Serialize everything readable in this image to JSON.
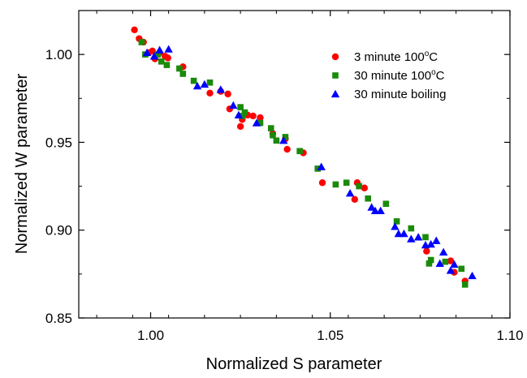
{
  "chart_data": {
    "type": "scatter",
    "xlabel": "Normalized S parameter",
    "ylabel": "Normalized W parameter",
    "xlim": [
      0.98,
      1.1
    ],
    "ylim": [
      0.85,
      1.025
    ],
    "x_ticks": [
      1.0,
      1.05,
      1.1
    ],
    "y_ticks": [
      0.85,
      0.9,
      0.95,
      1.0
    ],
    "x_tick_labels": [
      "1.00",
      "1.05",
      "1.10"
    ],
    "y_tick_labels": [
      "0.85",
      "0.90",
      "0.95",
      "1.00"
    ],
    "grid": false,
    "legend_position": "top-right",
    "series": [
      {
        "name_parts": [
          "3 minute 100",
          "o",
          "C"
        ],
        "marker": "circle",
        "color": "#ff0000",
        "points": [
          [
            0.9955,
            1.014
          ],
          [
            0.9968,
            1.009
          ],
          [
            0.998,
            1.007
          ],
          [
            0.9995,
            1.001
          ],
          [
            1.0005,
            1.002
          ],
          [
            1.0012,
            0.9975
          ],
          [
            1.0025,
            1.001
          ],
          [
            1.004,
            0.999
          ],
          [
            1.0048,
            0.998
          ],
          [
            1.009,
            0.993
          ],
          [
            1.0165,
            0.978
          ],
          [
            1.0195,
            0.979
          ],
          [
            1.0215,
            0.9775
          ],
          [
            1.022,
            0.969
          ],
          [
            1.025,
            0.959
          ],
          [
            1.0255,
            0.963
          ],
          [
            1.027,
            0.9655
          ],
          [
            1.0285,
            0.965
          ],
          [
            1.0305,
            0.964
          ],
          [
            1.034,
            0.955
          ],
          [
            1.0375,
            0.952
          ],
          [
            1.038,
            0.946
          ],
          [
            1.0425,
            0.944
          ],
          [
            1.0478,
            0.927
          ],
          [
            1.0568,
            0.9175
          ],
          [
            1.0575,
            0.927
          ],
          [
            1.0595,
            0.924
          ],
          [
            1.0768,
            0.888
          ],
          [
            1.0835,
            0.8825
          ],
          [
            1.0845,
            0.876
          ],
          [
            1.0875,
            0.871
          ]
        ]
      },
      {
        "name_parts": [
          "30 minute 100",
          "o",
          "C"
        ],
        "marker": "square",
        "color": "#1a8a0a",
        "points": [
          [
            0.9975,
            1.007
          ],
          [
            0.9985,
            1.0
          ],
          [
            1.002,
            1.0
          ],
          [
            1.003,
            0.996
          ],
          [
            1.0045,
            0.994
          ],
          [
            1.008,
            0.992
          ],
          [
            1.009,
            0.989
          ],
          [
            1.012,
            0.985
          ],
          [
            1.0165,
            0.984
          ],
          [
            1.025,
            0.97
          ],
          [
            1.0255,
            0.965
          ],
          [
            1.0262,
            0.967
          ],
          [
            1.0305,
            0.961
          ],
          [
            1.0335,
            0.958
          ],
          [
            1.034,
            0.954
          ],
          [
            1.035,
            0.951
          ],
          [
            1.0375,
            0.953
          ],
          [
            1.0415,
            0.945
          ],
          [
            1.0465,
            0.935
          ],
          [
            1.0515,
            0.926
          ],
          [
            1.0545,
            0.927
          ],
          [
            1.058,
            0.925
          ],
          [
            1.0605,
            0.918
          ],
          [
            1.0655,
            0.915
          ],
          [
            1.0685,
            0.905
          ],
          [
            1.0725,
            0.901
          ],
          [
            1.0765,
            0.896
          ],
          [
            1.0775,
            0.881
          ],
          [
            1.078,
            0.883
          ],
          [
            1.082,
            0.882
          ],
          [
            1.0865,
            0.878
          ],
          [
            1.0875,
            0.869
          ]
        ]
      },
      {
        "name_parts": [
          "30 minute boiling"
        ],
        "marker": "triangle",
        "color": "#0000ff",
        "points": [
          [
            0.999,
            1.001
          ],
          [
            1.001,
            0.999
          ],
          [
            1.0025,
            1.0025
          ],
          [
            1.005,
            1.003
          ],
          [
            1.013,
            0.982
          ],
          [
            1.015,
            0.983
          ],
          [
            1.0195,
            0.98
          ],
          [
            1.023,
            0.971
          ],
          [
            1.0245,
            0.9655
          ],
          [
            1.0295,
            0.961
          ],
          [
            1.037,
            0.951
          ],
          [
            1.0475,
            0.936
          ],
          [
            1.0555,
            0.921
          ],
          [
            1.0615,
            0.913
          ],
          [
            1.0625,
            0.911
          ],
          [
            1.064,
            0.911
          ],
          [
            1.068,
            0.902
          ],
          [
            1.069,
            0.898
          ],
          [
            1.0705,
            0.898
          ],
          [
            1.0725,
            0.895
          ],
          [
            1.0745,
            0.896
          ],
          [
            1.0765,
            0.8915
          ],
          [
            1.078,
            0.892
          ],
          [
            1.0795,
            0.894
          ],
          [
            1.0805,
            0.881
          ],
          [
            1.0815,
            0.8875
          ],
          [
            1.0835,
            0.877
          ],
          [
            1.0845,
            0.8805
          ],
          [
            1.0895,
            0.874
          ]
        ]
      }
    ]
  }
}
